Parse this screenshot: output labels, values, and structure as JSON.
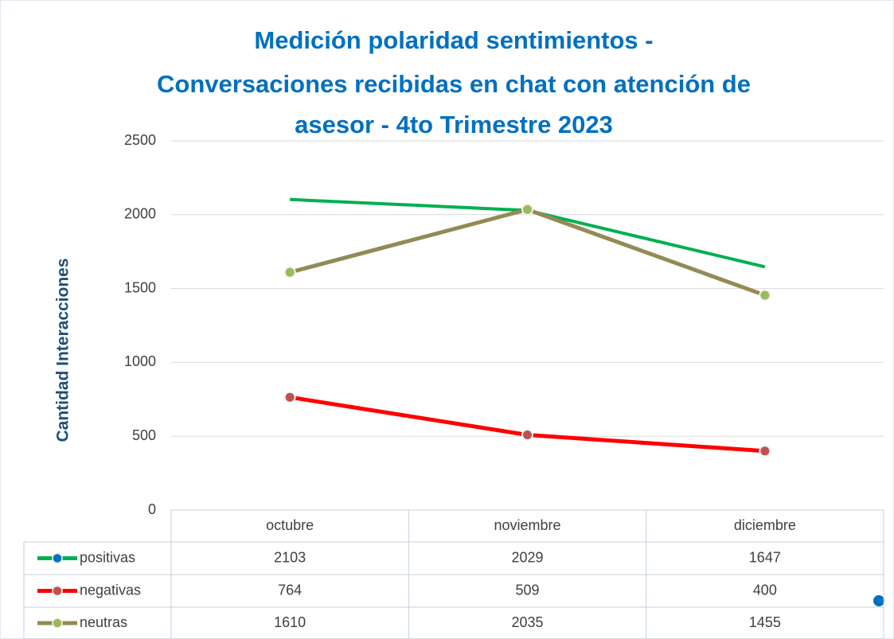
{
  "chart_data": {
    "type": "line",
    "title": [
      "Medición polaridad sentimientos -",
      "Conversaciones recibidas en chat con atención de",
      "asesor - 4to Trimestre 2023"
    ],
    "y_label": "Cantidad Interacciones",
    "categories": [
      "octubre",
      "noviembre",
      "diciembre"
    ],
    "series": [
      {
        "name": "positivas",
        "color": "#00b050",
        "marker_color": "#0070c0",
        "markers": false,
        "values": [
          2103,
          2029,
          1647
        ]
      },
      {
        "name": "negativas",
        "color": "#ff0000",
        "marker_color": "#c0504d",
        "markers": true,
        "values": [
          764,
          509,
          400
        ]
      },
      {
        "name": "neutras",
        "color": "#948a54",
        "marker_color": "#9bbb59",
        "markers": true,
        "values": [
          1610,
          2035,
          1455
        ]
      }
    ],
    "ylim": [
      0,
      2500
    ],
    "yticks": [
      0,
      500,
      1000,
      1500,
      2000,
      2500
    ],
    "grid": true,
    "data_table": true
  }
}
